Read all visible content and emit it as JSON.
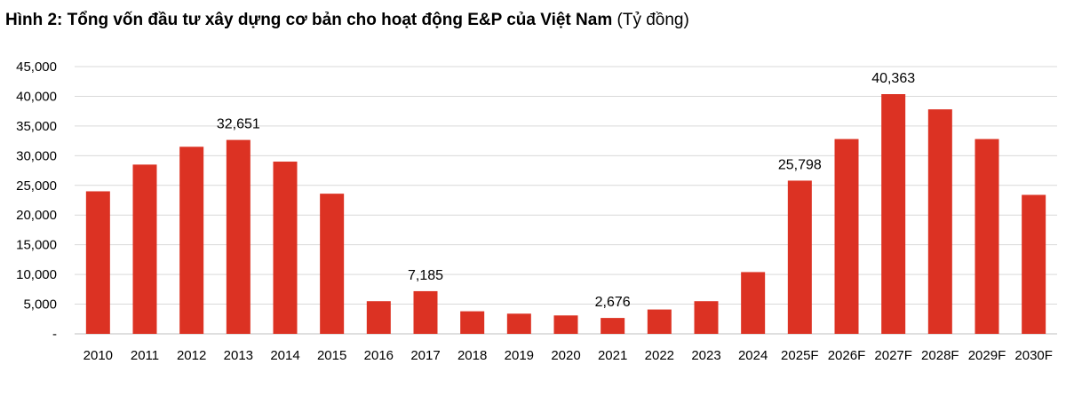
{
  "title_main": "Hình 2: Tổng vốn đầu tư xây dựng cơ bản cho hoạt động E&P của Việt Nam",
  "title_unit": "(Tỷ đồng)",
  "colors": {
    "bar": "#dc3223",
    "grid": "#d9d9d9",
    "axis": "#bfbfbf"
  },
  "chart_data": {
    "type": "bar",
    "categories": [
      "2010",
      "2011",
      "2012",
      "2013",
      "2014",
      "2015",
      "2016",
      "2017",
      "2018",
      "2019",
      "2020",
      "2021",
      "2022",
      "2023",
      "2024",
      "2025F",
      "2026F",
      "2027F",
      "2028F",
      "2029F",
      "2030F"
    ],
    "values": [
      24000,
      28500,
      31500,
      32651,
      29000,
      23600,
      5500,
      7185,
      3800,
      3400,
      3100,
      2676,
      4100,
      5500,
      10400,
      25798,
      32800,
      40363,
      37800,
      32800,
      23400
    ],
    "data_labels": [
      {
        "index": 3,
        "text": "32,651"
      },
      {
        "index": 7,
        "text": "7,185"
      },
      {
        "index": 11,
        "text": "2,676"
      },
      {
        "index": 15,
        "text": "25,798"
      },
      {
        "index": 17,
        "text": "40,363"
      }
    ],
    "yticks": [
      0,
      5000,
      10000,
      15000,
      20000,
      25000,
      30000,
      35000,
      40000,
      45000
    ],
    "ytick_labels": [
      "-",
      "5,000",
      "10,000",
      "15,000",
      "20,000",
      "25,000",
      "30,000",
      "35,000",
      "40,000",
      "45,000"
    ],
    "ylim": [
      0,
      45000
    ],
    "grid": true,
    "legend": false
  }
}
